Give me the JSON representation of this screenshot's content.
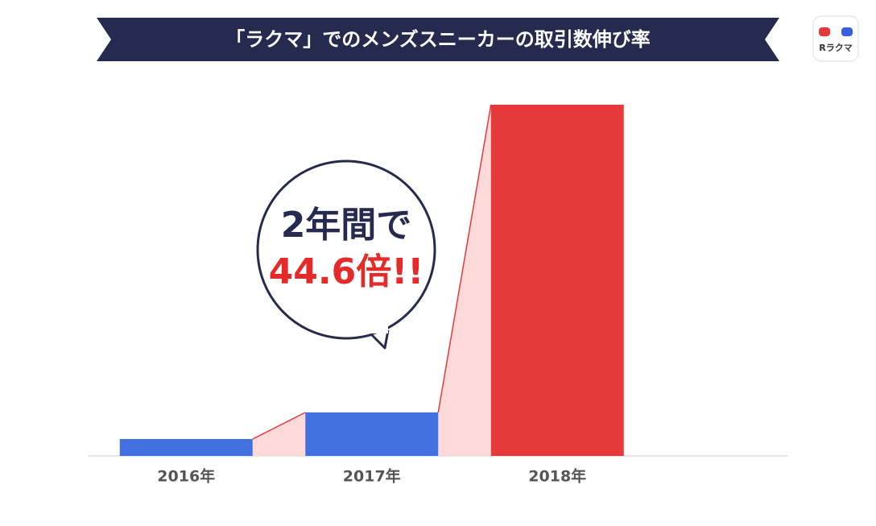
{
  "chart_data": {
    "type": "bar",
    "title": "「ラクマ」でのメンズスニーカーの取引数伸び率",
    "categories": [
      "2016年",
      "2017年",
      "2018年"
    ],
    "values": [
      21,
      54,
      436
    ],
    "colors": [
      "#4370e0",
      "#4370e0",
      "#e5393a"
    ],
    "ylim": [
      0,
      436
    ],
    "annotations": [
      "2年間で",
      "44.6倍!!"
    ],
    "logo": "Rラクマ"
  }
}
